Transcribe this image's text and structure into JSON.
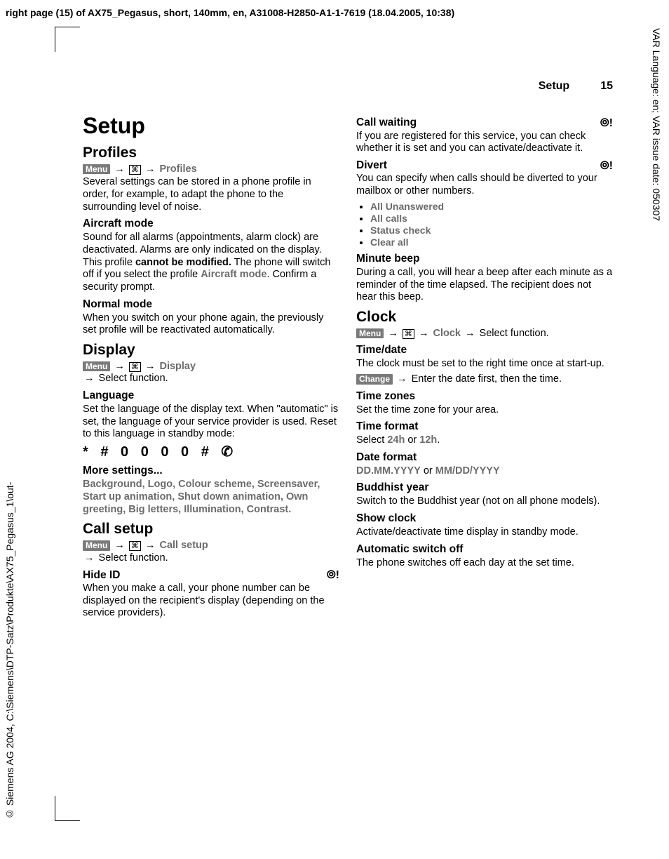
{
  "meta": {
    "header_line": "right page (15) of AX75_Pegasus, short, 140mm, en, A31008-H2850-A1-1-7619 (18.04.2005, 10:38)",
    "side_right": "VAR Language: en; VAR issue date: 050307",
    "side_left": "© Siemens AG 2004, C:\\Siemens\\DTP-Satz\\Produkte\\AX75_Pegasus_1\\out-"
  },
  "page_header": {
    "title": "Setup",
    "num": "15"
  },
  "nav": {
    "menu": "Menu",
    "change": "Change",
    "arrow": "→",
    "icon": "⌘"
  },
  "left": {
    "h1": "Setup",
    "profiles": {
      "h2": "Profiles",
      "nav_label": "Profiles",
      "intro": "Several settings can be stored in a phone profile in order, for example, to adapt the phone to the surrounding level of noise.",
      "aircraft_h3": "Aircraft mode",
      "aircraft_p1": "Sound for all alarms (appointments, alarm clock) are deactivated. Alarms are only indicated on the display. This profile ",
      "aircraft_b": "cannot be modified.",
      "aircraft_p2": " The phone will switch off if you select the profile ",
      "aircraft_grey": "Aircraft mode",
      "aircraft_p3": ". Confirm a security prompt.",
      "normal_h3": "Normal mode",
      "normal_p": "When you switch on your phone again, the previously set profile will be reactivated automatically."
    },
    "display": {
      "h2": "Display",
      "nav_label": "Display",
      "sel": "Select function.",
      "lang_h3": "Language",
      "lang_p": "Set the language of the display text. When \"automatic\" is set, the language of your service provider is used. Reset to this language in standby mode:",
      "code": "* # 0 0 0 0 # ✆",
      "more_h3": "More settings...",
      "more_p": "Background, Logo, Colour scheme, Screensaver, Start up animation, Shut down animation, Own greeting, Big letters, Illumination, Contrast."
    },
    "callsetup": {
      "h2": "Call setup",
      "nav_label": "Call setup",
      "sel": "Select function.",
      "hide_h3": "Hide ID",
      "hide_p": "When you make a call, your phone number can be displayed on the recipient's display (depending on the service providers)."
    }
  },
  "right": {
    "net_icon": "⦾!",
    "callwait_h3": "Call waiting",
    "callwait_p": "If you are registered for this service, you can check whether it is set and you can activate/deactivate it.",
    "divert_h3": "Divert",
    "divert_p": "You can specify when calls should be diverted to your mailbox or other numbers.",
    "divert_items": [
      "All Unanswered",
      "All calls",
      "Status check",
      "Clear all"
    ],
    "minute_h3": "Minute beep",
    "minute_p": "During a call, you will hear a beep after each minute as a reminder of the time elapsed. The recipient does not hear this beep.",
    "clock": {
      "h2": "Clock",
      "nav_label": "Clock",
      "sel": "Select function.",
      "timedate_h3": "Time/date",
      "timedate_p": "The clock must be set to the right time once at start-up.",
      "timedate_change": "Enter the date first, then the time.",
      "tz_h3": "Time zones",
      "tz_p": "Set the time zone for your area.",
      "tf_h3": "Time format",
      "tf_p1": "Select ",
      "tf_24": "24h",
      "tf_or": " or ",
      "tf_12": "12h",
      "tf_dot": ".",
      "df_h3": "Date format",
      "df_1": "DD.MM.YYYY",
      "df_or": " or ",
      "df_2": "MM/DD/YYYY",
      "by_h3": "Buddhist year",
      "by_p": "Switch to the Buddhist year (not on all phone models).",
      "sc_h3": "Show clock",
      "sc_p": "Activate/deactivate time display in standby mode.",
      "aso_h3": "Automatic switch off",
      "aso_p": "The phone switches off each day at the set time."
    }
  }
}
